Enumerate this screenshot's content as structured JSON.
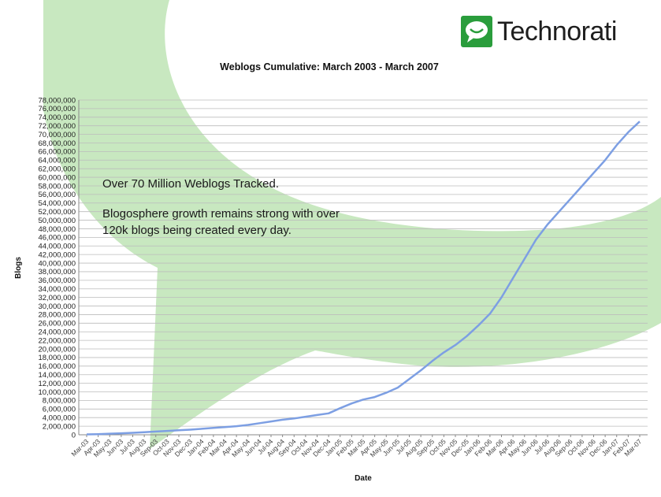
{
  "logo": {
    "text": "Technorati",
    "icon": "speech-bubble-icon",
    "color": "#2a9d3c"
  },
  "chart_data": {
    "type": "line",
    "title": "Weblogs Cumulative: March 2003 - March 2007",
    "xlabel": "Date",
    "ylabel": "Blogs",
    "ylim": [
      0,
      78000000
    ],
    "ytick_step": 2000000,
    "grid": true,
    "line_color": "#7d9fe3",
    "background_accent_color": "#c8e8c0",
    "x": [
      "Mar-03",
      "Apr-03",
      "May-03",
      "Jun-03",
      "Jul-03",
      "Aug-03",
      "Sep-03",
      "Oct-03",
      "Nov-03",
      "Dec-03",
      "Jan-04",
      "Feb-04",
      "Mar-04",
      "Apr-04",
      "May-04",
      "Jun-04",
      "Jul-04",
      "Aug-04",
      "Sep-04",
      "Oct-04",
      "Nov-04",
      "Dec-04",
      "Jan-05",
      "Feb-05",
      "Mar-05",
      "Apr-05",
      "May-05",
      "Jun-05",
      "Jul-05",
      "Aug-05",
      "Sep-05",
      "Oct-05",
      "Nov-05",
      "Dec-05",
      "Jan-06",
      "Feb-06",
      "Mar-06",
      "Apr-06",
      "May-06",
      "Jun-06",
      "Jul-06",
      "Aug-06",
      "Sep-06",
      "Oct-06",
      "Nov-06",
      "Dec-06",
      "Jan-07",
      "Feb-07",
      "Mar-07"
    ],
    "series": [
      {
        "values": [
          100000,
          150000,
          250000,
          350000,
          450000,
          600000,
          750000,
          900000,
          1050000,
          1200000,
          1400000,
          1600000,
          1800000,
          2000000,
          2300000,
          2700000,
          3100000,
          3500000,
          3800000,
          4200000,
          4600000,
          5000000,
          6200000,
          7300000,
          8200000,
          8800000,
          9800000,
          11000000,
          13000000,
          15000000,
          17200000,
          19200000,
          20900000,
          23000000,
          25500000,
          28200000,
          32000000,
          36500000,
          41000000,
          45500000,
          49000000,
          52000000,
          55000000,
          58000000,
          61000000,
          64000000,
          67500000,
          70500000,
          73000000
        ]
      }
    ],
    "annotations": [
      "Over 70 Million Weblogs Tracked.",
      "Blogosphere growth remains strong with over",
      "120k blogs being created every day."
    ]
  }
}
